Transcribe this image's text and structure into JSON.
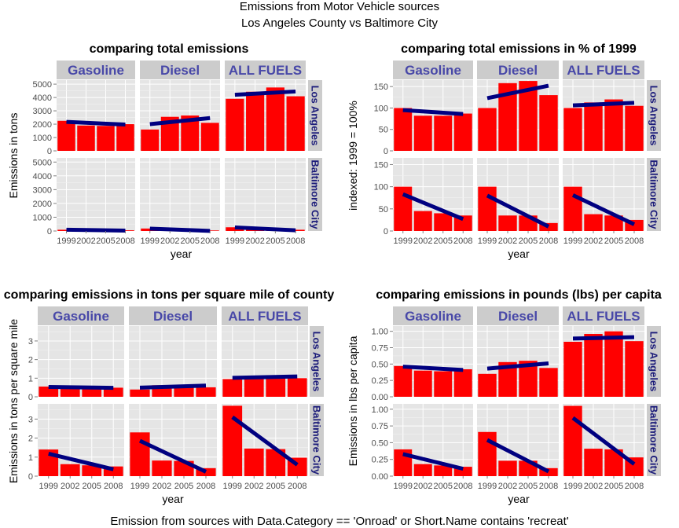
{
  "figure": {
    "title_line1": "Emissions from Motor Vehicle sources",
    "title_line2": "Los Angeles County vs Baltimore City",
    "footnote": "Emission from sources with Data.Category == 'Onroad' or Short.Name contains 'recreat'"
  },
  "colors": {
    "bar": "#ff0000",
    "trend": "#000080",
    "panel_bg": "#e5e5e5",
    "strip_bg": "#cccccc",
    "strip_top_text": "#4848a8",
    "strip_right_text": "#1c1c7a"
  },
  "chart_data": [
    {
      "type": "bar",
      "title": "comparing total emissions",
      "xlabel": "year",
      "ylabel": "Emissions in tons",
      "facet_columns": [
        "Gasoline",
        "Diesel",
        "ALL FUELS"
      ],
      "facet_rows": [
        "Los Angeles",
        "Baltimore City"
      ],
      "categories": [
        "1999",
        "2002",
        "2005",
        "2008"
      ],
      "ylim": [
        0,
        5300
      ],
      "yticks": [
        0,
        1000,
        2000,
        3000,
        4000,
        5000
      ],
      "yticklabels": [
        "0",
        "1000",
        "2000",
        "3000",
        "4000",
        "5000"
      ],
      "panels": [
        [
          {
            "values": [
              2250,
              1900,
              1870,
              2000
            ],
            "trend": [
              2170,
              1970
            ]
          },
          {
            "values": [
              1600,
              2550,
              2650,
              2100
            ],
            "trend": [
              2000,
              2460
            ]
          },
          {
            "values": [
              3900,
              4430,
              4750,
              4090
            ],
            "trend": [
              4200,
              4450
            ]
          }
        ],
        [
          {
            "values": [
              90,
              70,
              60,
              50
            ],
            "trend": [
              95,
              25
            ]
          },
          {
            "values": [
              180,
              120,
              80,
              40
            ],
            "trend": [
              170,
              10
            ]
          },
          {
            "values": [
              270,
              190,
              140,
              90
            ],
            "trend": [
              260,
              50
            ]
          }
        ]
      ]
    },
    {
      "type": "bar",
      "title": "comparing total emissions in % of 1999",
      "xlabel": "year",
      "ylabel": "indexed: 1999 = 100%",
      "facet_columns": [
        "Gasoline",
        "Diesel",
        "ALL FUELS"
      ],
      "facet_rows": [
        "Los Angeles",
        "Baltimore City"
      ],
      "categories": [
        "1999",
        "2002",
        "2005",
        "2008"
      ],
      "ylim": [
        0,
        165
      ],
      "yticks": [
        0,
        50,
        100,
        150
      ],
      "yticklabels": [
        "0",
        "50",
        "100",
        "150"
      ],
      "panels": [
        [
          {
            "values": [
              100,
              82,
              82,
              87
            ],
            "trend": [
              95,
              86
            ]
          },
          {
            "values": [
              100,
              158,
              163,
              130
            ],
            "trend": [
              123,
              152
            ]
          },
          {
            "values": [
              100,
              113,
              120,
              105
            ],
            "trend": [
              106,
              112
            ]
          }
        ],
        [
          {
            "values": [
              100,
              45,
              40,
              35
            ],
            "trend": [
              83,
              27
            ]
          },
          {
            "values": [
              100,
              35,
              35,
              18
            ],
            "trend": [
              80,
              10
            ]
          },
          {
            "values": [
              100,
              38,
              35,
              25
            ],
            "trend": [
              81,
              15
            ]
          }
        ]
      ]
    },
    {
      "type": "bar",
      "title": "comparing emissions in tons per square mile of county",
      "xlabel": "year",
      "ylabel": "Emissions in tons per square mile",
      "facet_columns": [
        "Gasoline",
        "Diesel",
        "ALL FUELS"
      ],
      "facet_rows": [
        "Los Angeles",
        "Baltimore City"
      ],
      "categories": [
        "1999",
        "2002",
        "2005",
        "2008"
      ],
      "ylim": [
        0,
        3.8
      ],
      "yticks": [
        0,
        1,
        2,
        3
      ],
      "yticklabels": [
        "0",
        "1",
        "2",
        "3"
      ],
      "panels": [
        [
          {
            "values": [
              0.55,
              0.47,
              0.46,
              0.49
            ],
            "trend": [
              0.53,
              0.48
            ]
          },
          {
            "values": [
              0.39,
              0.62,
              0.65,
              0.51
            ],
            "trend": [
              0.49,
              0.6
            ]
          },
          {
            "values": [
              0.95,
              1.08,
              1.16,
              1.0
            ],
            "trend": [
              1.02,
              1.09
            ]
          }
        ],
        [
          {
            "values": [
              1.4,
              0.63,
              0.57,
              0.51
            ],
            "trend": [
              1.18,
              0.36
            ]
          },
          {
            "values": [
              2.3,
              0.82,
              0.8,
              0.42
            ],
            "trend": [
              1.86,
              0.23
            ]
          },
          {
            "values": [
              3.7,
              1.45,
              1.42,
              0.97
            ],
            "trend": [
              3.1,
              0.6
            ]
          }
        ]
      ]
    },
    {
      "type": "bar",
      "title": "comparing emissions in pounds (lbs) per capita",
      "xlabel": "year",
      "ylabel": "Emissions in lbs per capita",
      "facet_columns": [
        "Gasoline",
        "Diesel",
        "ALL FUELS"
      ],
      "facet_rows": [
        "Los Angeles",
        "Baltimore City"
      ],
      "categories": [
        "1999",
        "2002",
        "2005",
        "2008"
      ],
      "ylim": [
        0,
        1.08
      ],
      "yticks": [
        0,
        0.25,
        0.5,
        0.75,
        1.0
      ],
      "yticklabels": [
        "0.00",
        "0.25",
        "0.50",
        "0.75",
        "1.00"
      ],
      "panels": [
        [
          {
            "values": [
              0.47,
              0.4,
              0.39,
              0.42
            ],
            "trend": [
              0.46,
              0.41
            ]
          },
          {
            "values": [
              0.35,
              0.53,
              0.55,
              0.44
            ],
            "trend": [
              0.43,
              0.51
            ]
          },
          {
            "values": [
              0.84,
              0.96,
              1.0,
              0.85
            ],
            "trend": [
              0.89,
              0.91
            ]
          }
        ],
        [
          {
            "values": [
              0.4,
              0.18,
              0.16,
              0.14
            ],
            "trend": [
              0.33,
              0.11
            ]
          },
          {
            "values": [
              0.66,
              0.23,
              0.23,
              0.12
            ],
            "trend": [
              0.54,
              0.07
            ]
          },
          {
            "values": [
              1.05,
              0.41,
              0.4,
              0.28
            ],
            "trend": [
              0.87,
              0.18
            ]
          }
        ]
      ]
    }
  ]
}
